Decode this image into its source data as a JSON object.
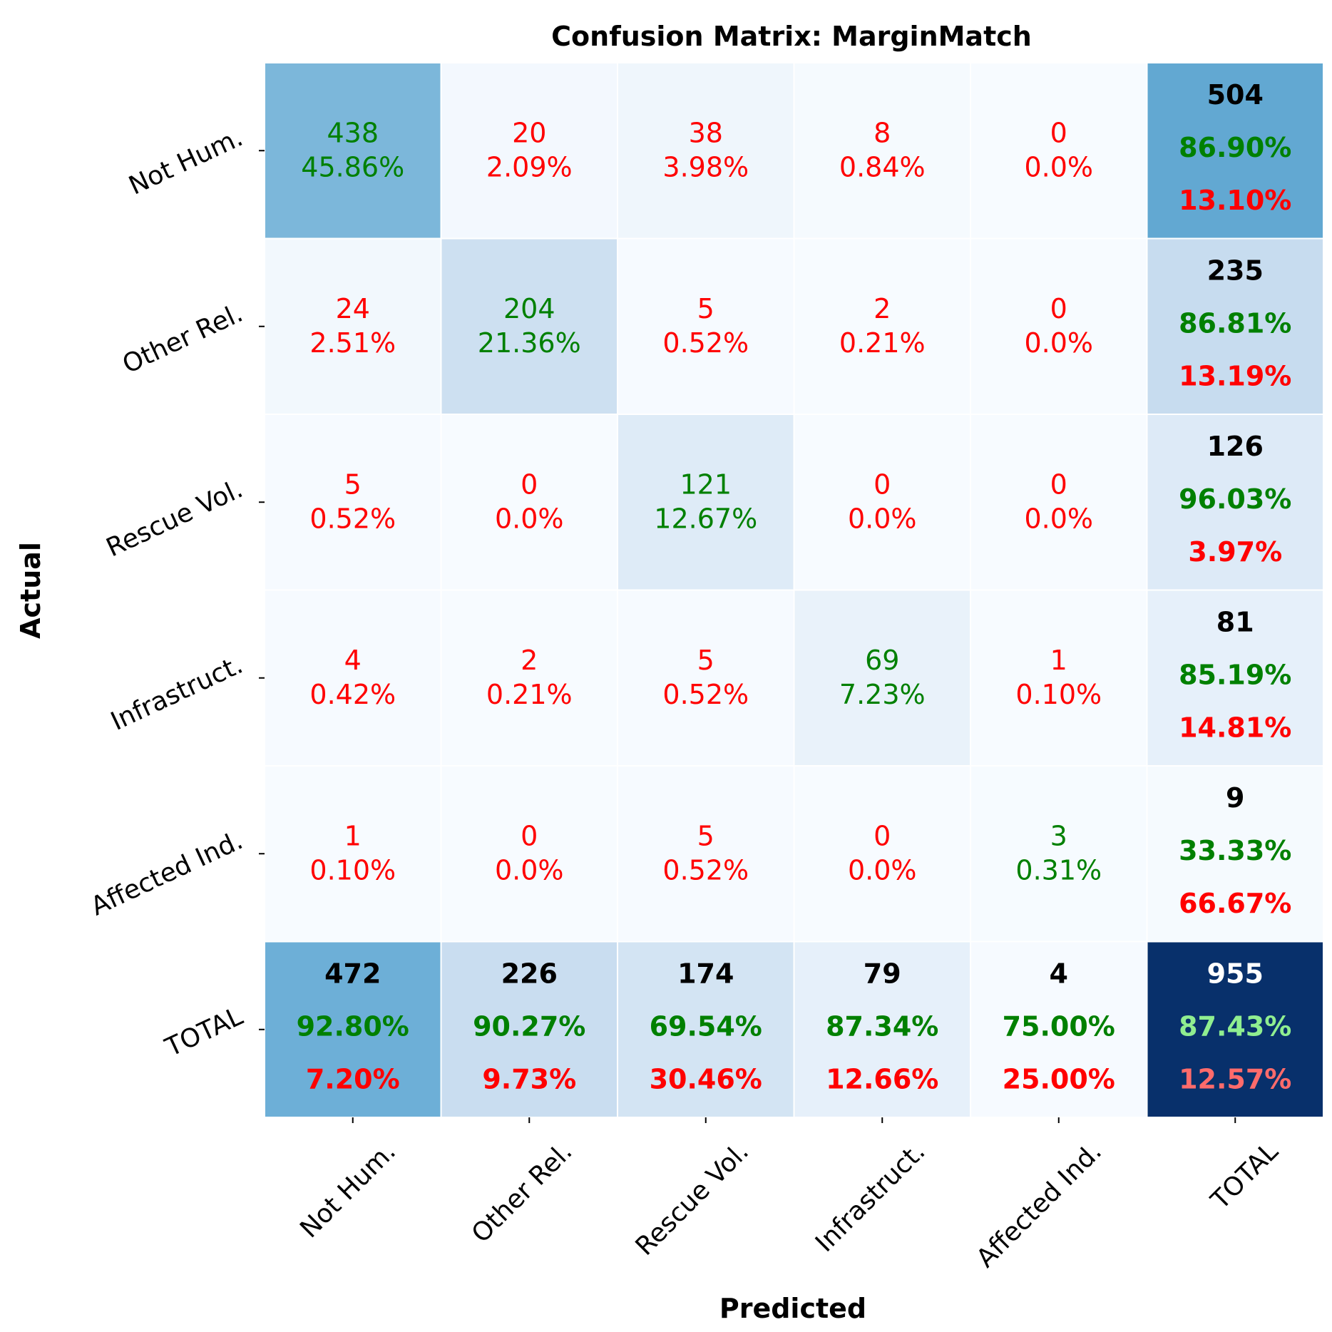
{
  "chart_data": {
    "type": "heatmap",
    "title": "Confusion Matrix: MarginMatch",
    "xlabel": "Predicted",
    "ylabel": "Actual",
    "classes": [
      "Not Hum.",
      "Other Rel.",
      "Rescue Vol.",
      "Infrastruct.",
      "Affected Ind."
    ],
    "total_label": "TOTAL",
    "matrix": [
      [
        438,
        20,
        38,
        8,
        0
      ],
      [
        24,
        204,
        5,
        2,
        0
      ],
      [
        5,
        0,
        121,
        0,
        0
      ],
      [
        4,
        2,
        5,
        69,
        1
      ],
      [
        1,
        0,
        5,
        0,
        3
      ]
    ],
    "cell_percent_labels": [
      [
        "45.86%",
        "2.09%",
        "3.98%",
        "0.84%",
        "0.0%"
      ],
      [
        "2.51%",
        "21.36%",
        "0.52%",
        "0.21%",
        "0.0%"
      ],
      [
        "0.52%",
        "0.0%",
        "12.67%",
        "0.0%",
        "0.0%"
      ],
      [
        "0.42%",
        "0.21%",
        "0.52%",
        "7.23%",
        "0.10%"
      ],
      [
        "0.10%",
        "0.0%",
        "0.52%",
        "0.0%",
        "0.31%"
      ]
    ],
    "row_totals": [
      {
        "count": 504,
        "correct": "86.90%",
        "error": "13.10%"
      },
      {
        "count": 235,
        "correct": "86.81%",
        "error": "13.19%"
      },
      {
        "count": 126,
        "correct": "96.03%",
        "error": "3.97%"
      },
      {
        "count": 81,
        "correct": "85.19%",
        "error": "14.81%"
      },
      {
        "count": 9,
        "correct": "33.33%",
        "error": "66.67%"
      }
    ],
    "col_totals": [
      {
        "count": 472,
        "correct": "92.80%",
        "error": "7.20%"
      },
      {
        "count": 226,
        "correct": "90.27%",
        "error": "9.73%"
      },
      {
        "count": 174,
        "correct": "69.54%",
        "error": "30.46%"
      },
      {
        "count": 79,
        "correct": "87.34%",
        "error": "12.66%"
      },
      {
        "count": 4,
        "correct": "75.00%",
        "error": "25.00%"
      }
    ],
    "grand_total": {
      "count": 955,
      "correct": "87.43%",
      "error": "12.57%"
    },
    "colormap": "Blues",
    "colors": {
      "correct": "#008000",
      "error": "#ff0000",
      "count": "#000000",
      "grand_count": "#ffffff",
      "grand_correct": "#90ee90",
      "grand_error": "#ff6b6b",
      "grand_cell": "#08306b"
    }
  }
}
